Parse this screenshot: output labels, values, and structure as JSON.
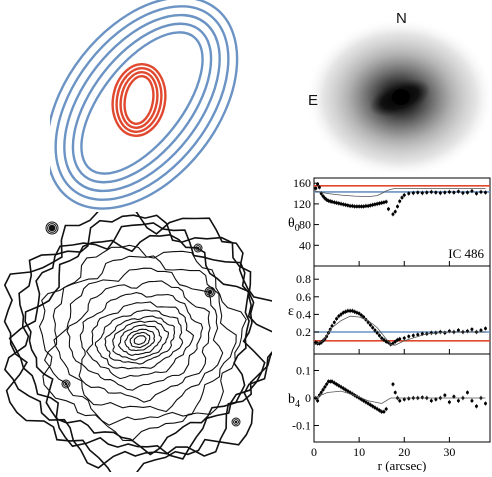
{
  "ellipse_schematic": {
    "outer_color": "#6b93c4",
    "inner_color": "#e0492f",
    "outer_count": 5,
    "inner_count": 4
  },
  "galaxy_image": {
    "north_label": "N",
    "east_label": "E"
  },
  "chart_data": [
    {
      "type": "scatter",
      "panel": "position-angle",
      "ylabel": "θ",
      "ylabel_sub": "0",
      "annotation": "IC 486",
      "xlim": [
        0,
        39
      ],
      "ylim": [
        0,
        170
      ],
      "xticks": [
        0,
        10,
        20,
        30
      ],
      "yticks": [
        40,
        80,
        120,
        160
      ],
      "y_tick_labels": [
        "40",
        "80",
        "120",
        "160"
      ],
      "reference_lines": [
        {
          "color": "#e0492f",
          "y": 155
        },
        {
          "color": "#6b93c4",
          "y": 143
        }
      ],
      "series": [
        {
          "style": "points",
          "x": [
            0.4,
            0.8,
            1.2,
            1.6,
            2.0,
            2.4,
            2.8,
            3.2,
            3.6,
            4.0,
            4.5,
            5,
            5.5,
            6,
            6.5,
            7,
            7.5,
            8,
            8.5,
            9,
            9.5,
            10,
            10.5,
            11,
            11.5,
            12,
            12.5,
            13,
            13.5,
            14,
            14.5,
            15,
            15.5,
            16,
            16.5,
            17.5,
            18,
            18.5,
            19,
            19.5,
            20,
            21,
            22,
            23,
            24,
            25,
            26,
            27,
            28,
            29,
            30,
            31,
            32,
            33,
            34,
            35,
            36,
            37,
            38
          ],
          "y": [
            150,
            158,
            152,
            140,
            135,
            131,
            128,
            126,
            125,
            124,
            123,
            122,
            121,
            120,
            119,
            118,
            117,
            116,
            116,
            115,
            115,
            115,
            115,
            115,
            116,
            116,
            117,
            118,
            119,
            120,
            121,
            122,
            123,
            124,
            110,
            100,
            105,
            115,
            125,
            132,
            137,
            140,
            141,
            142,
            141,
            142,
            143,
            142,
            141,
            142,
            143,
            142,
            144,
            141,
            142,
            145,
            140,
            143,
            142
          ]
        },
        {
          "style": "line",
          "x": [
            0,
            3,
            6,
            9,
            12,
            14,
            15,
            16,
            17,
            18,
            20,
            25,
            30,
            38
          ],
          "y": [
            145,
            140,
            137,
            135,
            134,
            136,
            140,
            145,
            148,
            150,
            150,
            150,
            150,
            150
          ]
        }
      ]
    },
    {
      "type": "scatter",
      "panel": "ellipticity",
      "ylabel": "ε",
      "xlim": [
        0,
        39
      ],
      "ylim": [
        -0.05,
        0.95
      ],
      "xticks": [
        0,
        10,
        20,
        30
      ],
      "yticks": [
        0.2,
        0.4,
        0.6,
        0.8
      ],
      "y_tick_labels": [
        "0.2",
        "0.4",
        "0.6",
        "0.8"
      ],
      "reference_lines": [
        {
          "color": "#6b93c4",
          "y": 0.2
        },
        {
          "color": "#e0492f",
          "y": 0.1
        }
      ],
      "series": [
        {
          "style": "points",
          "x": [
            0.4,
            0.8,
            1.2,
            1.6,
            2.0,
            2.4,
            2.8,
            3.2,
            3.6,
            4.0,
            4.5,
            5,
            5.5,
            6,
            6.5,
            7,
            7.5,
            8,
            8.5,
            9,
            9.5,
            10,
            10.5,
            11,
            11.5,
            12,
            12.5,
            13,
            13.5,
            14,
            14.5,
            15,
            15.5,
            16,
            16.5,
            17,
            17.5,
            18,
            18.5,
            19,
            20,
            21,
            22,
            23,
            24,
            25,
            26,
            27,
            28,
            29,
            30,
            31,
            32,
            33,
            34,
            35,
            36,
            37,
            38
          ],
          "y": [
            0.08,
            0.07,
            0.07,
            0.08,
            0.1,
            0.12,
            0.15,
            0.19,
            0.23,
            0.27,
            0.31,
            0.35,
            0.38,
            0.4,
            0.42,
            0.43,
            0.44,
            0.44,
            0.44,
            0.43,
            0.42,
            0.41,
            0.39,
            0.37,
            0.34,
            0.31,
            0.28,
            0.25,
            0.22,
            0.19,
            0.16,
            0.13,
            0.11,
            0.09,
            0.08,
            0.06,
            0.07,
            0.09,
            0.11,
            0.12,
            0.13,
            0.15,
            0.16,
            0.17,
            0.18,
            0.18,
            0.19,
            0.19,
            0.2,
            0.19,
            0.21,
            0.2,
            0.22,
            0.2,
            0.21,
            0.23,
            0.2,
            0.22,
            0.24
          ]
        },
        {
          "style": "line",
          "x": [
            0,
            2,
            4,
            6,
            8,
            10,
            12,
            14,
            16,
            17,
            18,
            20,
            25,
            30,
            38
          ],
          "y": [
            0.05,
            0.1,
            0.25,
            0.33,
            0.38,
            0.37,
            0.33,
            0.25,
            0.12,
            0.06,
            0.05,
            0.1,
            0.18,
            0.2,
            0.2
          ]
        }
      ]
    },
    {
      "type": "scatter",
      "panel": "b4",
      "ylabel": "b",
      "ylabel_sub": "4",
      "xlabel": "r (arcsec)",
      "xlim": [
        0,
        39
      ],
      "ylim": [
        -0.16,
        0.16
      ],
      "xticks": [
        0,
        10,
        20,
        30
      ],
      "x_tick_labels": [
        "0",
        "10",
        "20",
        "30"
      ],
      "yticks": [
        -0.1,
        0,
        0.1
      ],
      "y_tick_labels": [
        "-0.1",
        "0",
        "0.1"
      ],
      "series": [
        {
          "style": "points",
          "x": [
            0.4,
            0.8,
            1.2,
            1.6,
            2.0,
            2.4,
            2.8,
            3.2,
            3.6,
            4.0,
            4.5,
            5,
            5.5,
            6,
            6.5,
            7,
            7.5,
            8,
            8.5,
            9,
            9.5,
            10,
            10.5,
            11,
            11.5,
            12,
            12.5,
            13,
            13.5,
            14,
            14.5,
            15,
            15.5,
            16,
            17.5,
            18,
            18.5,
            19,
            20,
            21,
            22,
            23,
            24,
            25,
            26,
            27,
            28,
            29,
            30,
            31,
            32,
            33,
            34,
            35,
            36,
            37,
            38
          ],
          "y": [
            0.0,
            -0.01,
            0.01,
            0.02,
            0.03,
            0.04,
            0.05,
            0.06,
            0.06,
            0.06,
            0.055,
            0.05,
            0.045,
            0.04,
            0.035,
            0.03,
            0.025,
            0.02,
            0.015,
            0.01,
            0.005,
            0.0,
            -0.005,
            -0.01,
            -0.015,
            -0.02,
            -0.025,
            -0.03,
            -0.035,
            -0.04,
            -0.045,
            -0.05,
            -0.05,
            -0.04,
            0.05,
            0.02,
            0.0,
            -0.01,
            -0.005,
            -0.002,
            0.0,
            0.0,
            0.002,
            0.0,
            -0.01,
            -0.005,
            0.0,
            0.01,
            -0.015,
            0.005,
            -0.01,
            0.0,
            0.02,
            -0.01,
            -0.03,
            0.0,
            -0.02
          ]
        },
        {
          "style": "line",
          "x": [
            0,
            3,
            6,
            9,
            12,
            15,
            17,
            19,
            22,
            26,
            30,
            38
          ],
          "y": [
            0.0,
            0.02,
            0.025,
            0.01,
            -0.01,
            -0.02,
            0.0,
            0.0,
            0.0,
            0.0,
            0.0,
            0.0
          ]
        }
      ]
    }
  ]
}
